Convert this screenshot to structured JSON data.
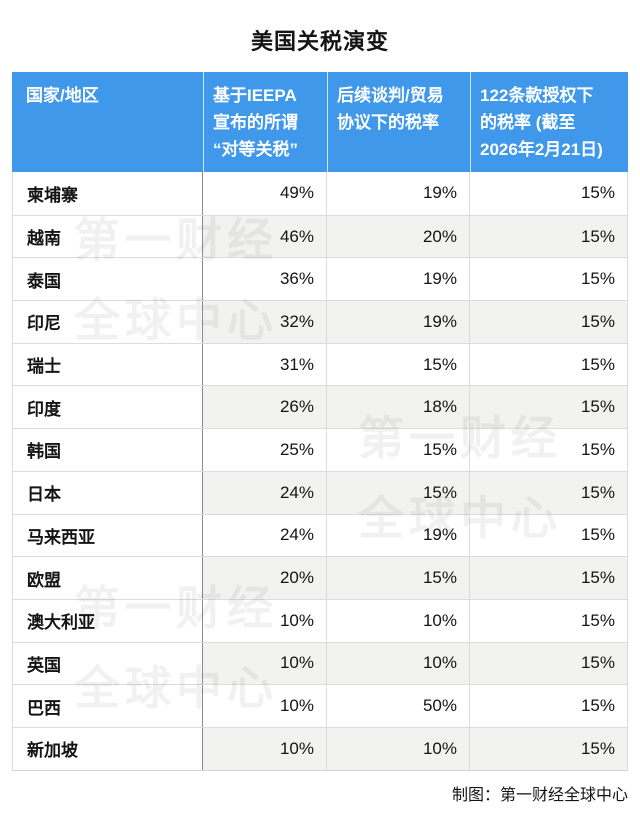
{
  "chart_data": {
    "type": "table",
    "title": "美国关税演变",
    "columns": [
      "国家/地区",
      "基于IEEPA宣布的所谓“对等关税”",
      "后续谈判/贸易协议下的税率",
      "122条款授权下的税率 (截至2026年2月21日)"
    ],
    "rows": [
      [
        "柬埔寨",
        "49%",
        "19%",
        "15%"
      ],
      [
        "越南",
        "46%",
        "20%",
        "15%"
      ],
      [
        "泰国",
        "36%",
        "19%",
        "15%"
      ],
      [
        "印尼",
        "32%",
        "19%",
        "15%"
      ],
      [
        "瑞士",
        "31%",
        "15%",
        "15%"
      ],
      [
        "印度",
        "26%",
        "18%",
        "15%"
      ],
      [
        "韩国",
        "25%",
        "15%",
        "15%"
      ],
      [
        "日本",
        "24%",
        "15%",
        "15%"
      ],
      [
        "马来西亚",
        "24%",
        "19%",
        "15%"
      ],
      [
        "欧盟",
        "20%",
        "15%",
        "15%"
      ],
      [
        "澳大利亚",
        "10%",
        "10%",
        "15%"
      ],
      [
        "英国",
        "10%",
        "10%",
        "15%"
      ],
      [
        "巴西",
        "10%",
        "50%",
        "15%"
      ],
      [
        "新加坡",
        "10%",
        "10%",
        "15%"
      ]
    ],
    "source_note": "制图：第一财经全球中心",
    "legend_position": "none",
    "grid": "on"
  },
  "header_display": {
    "col1": "国家/地区",
    "col2": "基于IEEPA\n宣布的所谓\n“对等关税”",
    "col3": "后续谈判/贸易\n协议下的税率",
    "col4": "122条款授权下\n的税率 (截至\n2026年2月21日)"
  },
  "watermark": {
    "line1": "第一财经",
    "line2": "全球中心"
  },
  "colors": {
    "header_bg": "#3F98E9",
    "row_alt_bg": "#F2F2F0",
    "header_text": "#FFFFFF",
    "body_text": "#141414"
  }
}
